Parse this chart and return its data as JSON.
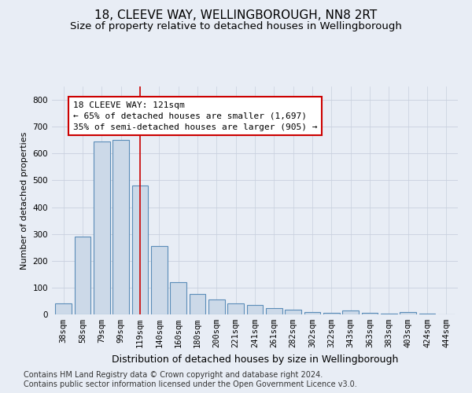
{
  "title1": "18, CLEEVE WAY, WELLINGBOROUGH, NN8 2RT",
  "title2": "Size of property relative to detached houses in Wellingborough",
  "xlabel": "Distribution of detached houses by size in Wellingborough",
  "ylabel": "Number of detached properties",
  "categories": [
    "38sqm",
    "58sqm",
    "79sqm",
    "99sqm",
    "119sqm",
    "140sqm",
    "160sqm",
    "180sqm",
    "200sqm",
    "221sqm",
    "241sqm",
    "261sqm",
    "282sqm",
    "302sqm",
    "322sqm",
    "343sqm",
    "363sqm",
    "383sqm",
    "403sqm",
    "424sqm",
    "444sqm"
  ],
  "values": [
    42,
    290,
    645,
    650,
    480,
    255,
    120,
    75,
    55,
    40,
    35,
    22,
    18,
    10,
    5,
    15,
    5,
    2,
    8,
    2,
    1
  ],
  "bar_color": "#ccd9e8",
  "bar_edge_color": "#5b8db8",
  "vline_x_index": 4,
  "vline_color": "#cc0000",
  "annotation_line1": "18 CLEEVE WAY: 121sqm",
  "annotation_line2": "← 65% of detached houses are smaller (1,697)",
  "annotation_line3": "35% of semi-detached houses are larger (905) →",
  "annotation_box_color": "white",
  "annotation_box_edge_color": "#cc0000",
  "ylim": [
    0,
    850
  ],
  "yticks": [
    0,
    100,
    200,
    300,
    400,
    500,
    600,
    700,
    800
  ],
  "grid_color": "#c8d0de",
  "bg_color": "#e8edf5",
  "footnote1": "Contains HM Land Registry data © Crown copyright and database right 2024.",
  "footnote2": "Contains public sector information licensed under the Open Government Licence v3.0.",
  "title1_fontsize": 11,
  "title2_fontsize": 9.5,
  "xlabel_fontsize": 9,
  "ylabel_fontsize": 8,
  "annotation_fontsize": 8,
  "footnote_fontsize": 7,
  "tick_fontsize": 7.5
}
